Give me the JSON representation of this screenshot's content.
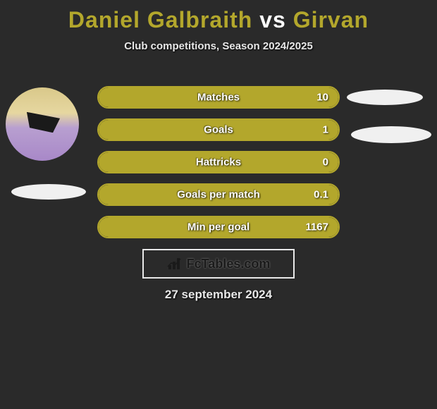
{
  "header": {
    "title_parts": [
      "Daniel Galbraith",
      " vs ",
      "Girvan"
    ],
    "title_colors": [
      "#b3a72c",
      "#ffffff",
      "#b3a72c"
    ],
    "subtitle": "Club competitions, Season 2024/2025"
  },
  "stats": {
    "border_color": "#b3a72c",
    "fill_color": "#b3a72c",
    "rows": [
      {
        "label": "Matches",
        "value": "10",
        "fill_pct": 100
      },
      {
        "label": "Goals",
        "value": "1",
        "fill_pct": 100
      },
      {
        "label": "Hattricks",
        "value": "0",
        "fill_pct": 100
      },
      {
        "label": "Goals per match",
        "value": "0.1",
        "fill_pct": 100
      },
      {
        "label": "Min per goal",
        "value": "1167",
        "fill_pct": 100
      }
    ]
  },
  "brand": {
    "text": "FcTables.com",
    "icon_name": "bar-chart-icon"
  },
  "footer": {
    "date": "27 september 2024"
  },
  "colors": {
    "background": "#2a2a2a",
    "text_light": "#e8e8e8",
    "ellipse": "#f0f0f0"
  }
}
